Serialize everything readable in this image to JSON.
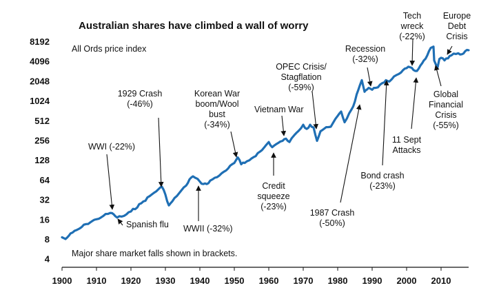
{
  "chart_data": {
    "type": "line",
    "title": "Australian shares have climbed a wall of worry",
    "subtitle": "All Ords price index",
    "footnote": "Major share market falls shown in brackets.",
    "y_scale": "log2",
    "xlim": [
      1900,
      2018
    ],
    "ylim": [
      4,
      8192
    ],
    "x_ticks": [
      "1900",
      "1910",
      "1920",
      "1930",
      "1940",
      "1950",
      "1960",
      "1970",
      "1980",
      "1990",
      "2000",
      "2010"
    ],
    "y_ticks": [
      "4",
      "8",
      "16",
      "32",
      "64",
      "128",
      "256",
      "512",
      "1024",
      "2048",
      "4096",
      "8192"
    ],
    "line_color": "#1f6fb4",
    "series": [
      {
        "x": [
          1900,
          1901,
          1902,
          1903,
          1905,
          1907,
          1910,
          1912,
          1914,
          1915,
          1916,
          1918,
          1920,
          1923,
          1926,
          1928,
          1929,
          1930,
          1931,
          1932,
          1934,
          1936,
          1937,
          1938,
          1940,
          1941,
          1942,
          1943,
          1945,
          1947,
          1950,
          1951,
          1952,
          1953,
          1955,
          1958,
          1960,
          1961,
          1962,
          1964,
          1965,
          1966,
          1968,
          1970,
          1971,
          1972,
          1973,
          1974,
          1975,
          1976,
          1978,
          1980,
          1981,
          1982,
          1984,
          1985,
          1986,
          1987,
          1987.8,
          1988,
          1989,
          1990,
          1991,
          1993,
          1994,
          1995,
          1997,
          1999,
          2000,
          2001,
          2002,
          2003,
          2004,
          2005,
          2006,
          2007,
          2007.8,
          2008,
          2009,
          2009.5,
          2010,
          2011,
          2012,
          2013,
          2015,
          2016,
          2017,
          2018
        ],
        "y": [
          8.5,
          8,
          9,
          10,
          11.5,
          13.5,
          16,
          18,
          20,
          19,
          17,
          18,
          21,
          28,
          38,
          46,
          50,
          38,
          26,
          30,
          40,
          52,
          65,
          72,
          60,
          55,
          55,
          62,
          70,
          85,
          115,
          140,
          110,
          115,
          135,
          180,
          240,
          200,
          220,
          250,
          270,
          240,
          330,
          440,
          380,
          440,
          400,
          250,
          350,
          380,
          410,
          600,
          700,
          480,
          750,
          1000,
          1500,
          2100,
          1400,
          1450,
          1600,
          1500,
          1600,
          1900,
          2100,
          2000,
          2500,
          3000,
          3200,
          3300,
          3000,
          2900,
          3500,
          4200,
          5000,
          6500,
          6800,
          4200,
          3300,
          4400,
          4600,
          4200,
          4500,
          5000,
          5400,
          5200,
          5800,
          6000
        ]
      }
    ],
    "annotations": [
      {
        "lines": [
          "1929 Crash",
          "(-46%)"
        ]
      },
      {
        "lines": [
          "WWI (-22%)"
        ]
      },
      {
        "lines": [
          "Spanish flu"
        ]
      },
      {
        "lines": [
          "WWII (-32%)"
        ]
      },
      {
        "lines": [
          "Korean War",
          "boom/Wool",
          "bust",
          "(-34%)"
        ]
      },
      {
        "lines": [
          "Vietnam War"
        ]
      },
      {
        "lines": [
          "Credit",
          "squeeze",
          "(-23%)"
        ]
      },
      {
        "lines": [
          "OPEC Crisis/",
          "Stagflation",
          "(-59%)"
        ]
      },
      {
        "lines": [
          "1987 Crash",
          "(-50%)"
        ]
      },
      {
        "lines": [
          "Recession",
          "(-32%)"
        ]
      },
      {
        "lines": [
          "Bond crash",
          "(-23%)"
        ]
      },
      {
        "lines": [
          "Tech",
          "wreck",
          "(-22%)"
        ]
      },
      {
        "lines": [
          "11 Sept",
          "Attacks"
        ]
      },
      {
        "lines": [
          "Global",
          "Financial",
          "Crisis",
          "(-55%)"
        ]
      },
      {
        "lines": [
          "Europe",
          "Debt",
          "Crisis"
        ]
      }
    ]
  }
}
